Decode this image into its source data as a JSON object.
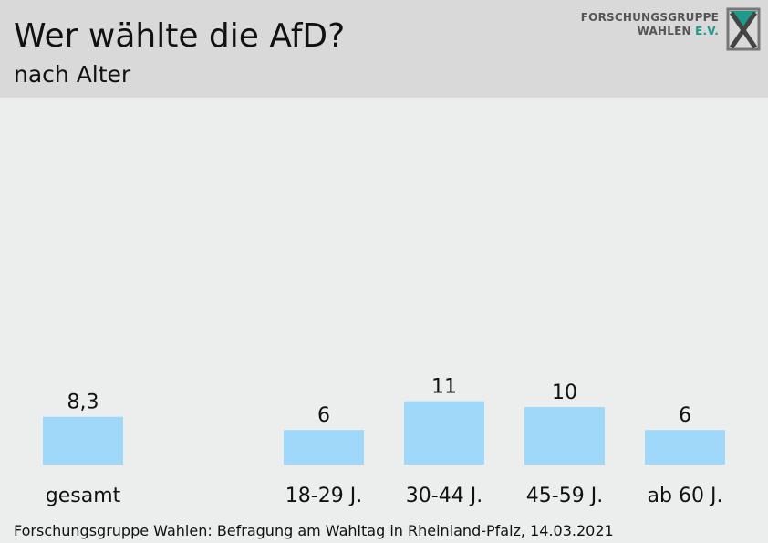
{
  "header": {
    "title": "Wer wählte die AfD?",
    "subtitle": "nach Alter"
  },
  "logo": {
    "line1": "FORSCHUNGSGRUPPE",
    "line2_main": "WAHLEN ",
    "line2_accent": "E.V."
  },
  "colors": {
    "bar": "#a0d8fa",
    "header_bg": "#d9d9d9",
    "page_bg": "#ebeeed",
    "logo_accent": "#1e9a8a"
  },
  "chart_data": {
    "type": "bar",
    "title": "Wer wählte die AfD?",
    "subtitle": "nach Alter",
    "categories": [
      "gesamt",
      "18-29 J.",
      "30-44 J.",
      "45-59 J.",
      "ab 60 J."
    ],
    "values": [
      8.3,
      6,
      11,
      10,
      6
    ],
    "value_labels": [
      "8,3",
      "6",
      "11",
      "10",
      "6"
    ],
    "ylim": [
      0,
      11
    ],
    "grid": false,
    "legend": "none"
  },
  "footer": {
    "source": "Forschungsgruppe Wahlen: Befragung am Wahltag in Rheinland-Pfalz, 14.03.2021"
  }
}
